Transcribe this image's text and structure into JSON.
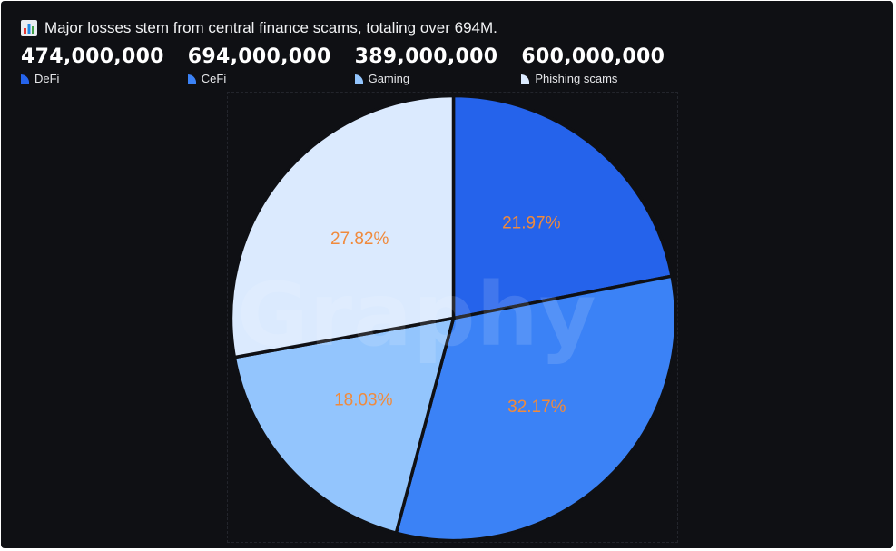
{
  "title": "Major losses stem from central finance scams, totaling over 694M.",
  "title_icon": "bar-chart-icon",
  "watermark": "Graphy",
  "colors": {
    "background": "#0f1014",
    "label": "#f08a3c",
    "separator": "#0f1014"
  },
  "chart_data": {
    "type": "pie",
    "title": "Major losses stem from central finance scams, totaling over 694M.",
    "legend_position": "top-left",
    "categories": [
      "DeFi",
      "CeFi",
      "Gaming",
      "Phishing scams"
    ],
    "values": [
      474000000,
      694000000,
      389000000,
      600000000
    ],
    "value_labels": [
      "474,000,000",
      "694,000,000",
      "389,000,000",
      "600,000,000"
    ],
    "percent_labels": [
      "21.97%",
      "32.17%",
      "18.03%",
      "27.82%"
    ],
    "colors": [
      "#2563eb",
      "#3b82f6",
      "#93c5fd",
      "#dbeafe"
    ]
  }
}
